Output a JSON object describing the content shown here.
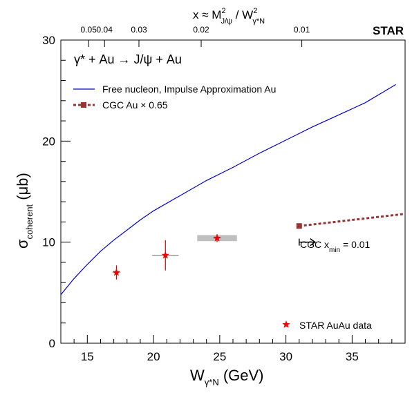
{
  "chart_data": {
    "type": "scatter",
    "title": "",
    "top_axis_label": {
      "base": "x ≈ M",
      "sup1": "2",
      "sub1": "J/ψ",
      "mid": " / W",
      "sup2": "2",
      "sub2": "γ*N"
    },
    "top_ticks": [
      "0.05",
      "0.04",
      "0.03",
      "0.02",
      "0.01"
    ],
    "top_tick_x": [
      15.1,
      16.3,
      18.9,
      23.6,
      31.2
    ],
    "experiment_label": "STAR",
    "reaction_label": "γ* + Au → J/ψ + Au",
    "xlabel": {
      "base": "W",
      "sub": "γ*N",
      "unit": " (GeV)"
    },
    "ylabel": {
      "base": "σ",
      "sub": "coherent",
      "unit": " (μb)"
    },
    "xlim": [
      13.0,
      39.0
    ],
    "ylim": [
      0,
      30
    ],
    "xticks": [
      15,
      20,
      25,
      30,
      35
    ],
    "yticks": [
      0,
      10,
      20,
      30
    ],
    "grid": false,
    "legend_position": "top-left",
    "series": [
      {
        "name": "Free nucleon, Impulse Approximation Au",
        "kind": "line",
        "color": "#0000cc",
        "x": [
          13.0,
          14.0,
          15.0,
          16.0,
          17.0,
          18.0,
          19.0,
          20.0,
          22.0,
          24.0,
          26.0,
          28.0,
          30.0,
          32.0,
          34.0,
          36.0,
          38.3
        ],
        "y": [
          4.8,
          6.4,
          7.8,
          9.1,
          10.2,
          11.2,
          12.2,
          13.1,
          14.6,
          16.1,
          17.4,
          18.8,
          20.1,
          21.4,
          22.6,
          23.8,
          25.6
        ]
      },
      {
        "name": "CGC Au  × 0.65",
        "kind": "dashed-line",
        "color": "#993333",
        "x": [
          31.0,
          39.0
        ],
        "y": [
          11.6,
          12.8
        ]
      },
      {
        "name": "STAR AuAu data",
        "kind": "points",
        "color": "#ee0000",
        "points": [
          {
            "x": 17.2,
            "y": 7.0,
            "xerr": 0.3,
            "yerr": 0.7,
            "syst_w": 0,
            "syst_h": 0
          },
          {
            "x": 20.9,
            "y": 8.7,
            "xerr": 1.0,
            "yerr": 1.5,
            "syst_w": 0,
            "syst_h": 0
          },
          {
            "x": 24.8,
            "y": 10.4,
            "xerr": 0.3,
            "yerr": 0.4,
            "syst_w": 3.0,
            "syst_h": 0.6
          }
        ]
      }
    ],
    "annotation": {
      "base": "CGC x",
      "sub": "min",
      "tail": " = 0.01",
      "arrow_x": [
        31.0,
        32.2
      ],
      "arrow_y": 9.8
    }
  }
}
